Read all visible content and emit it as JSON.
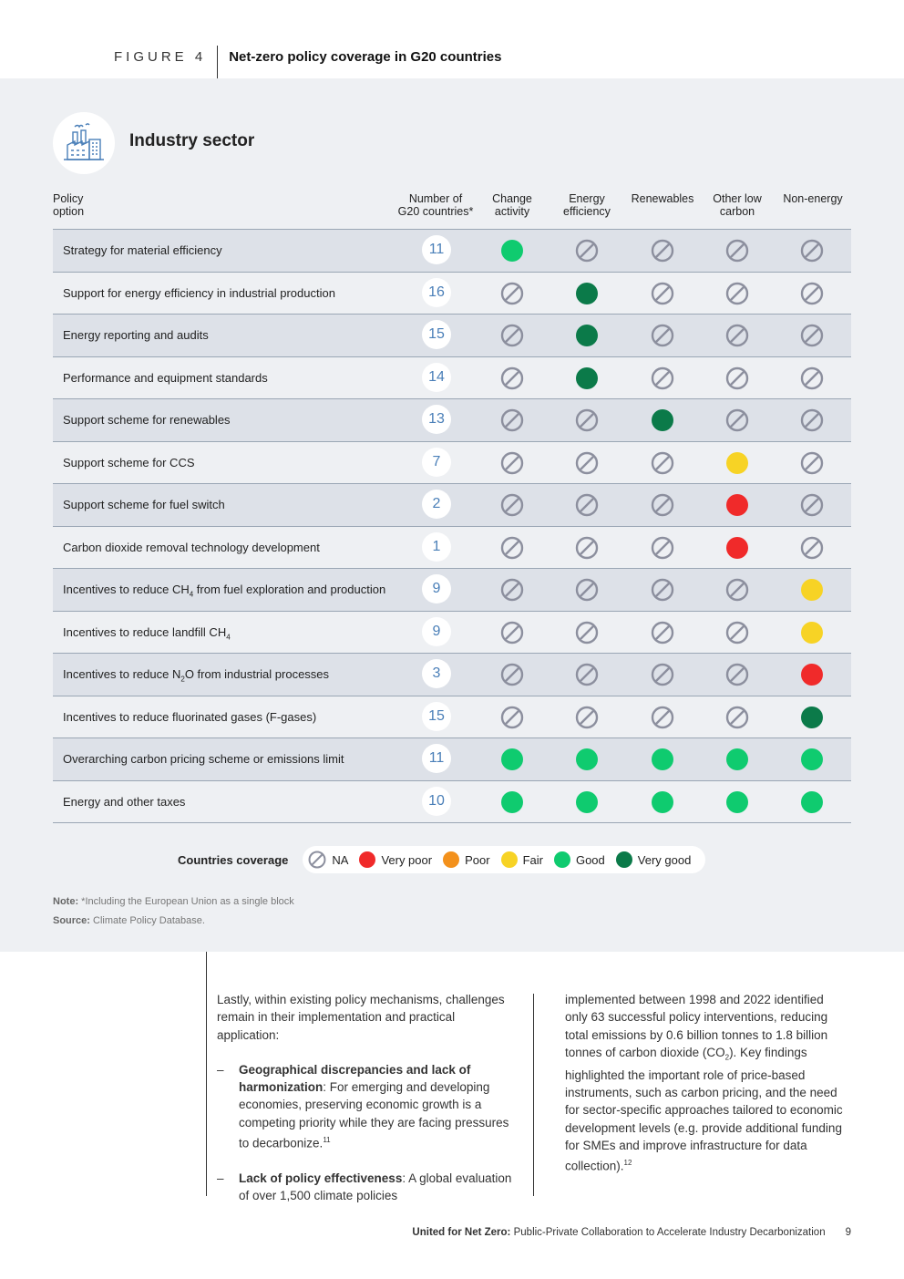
{
  "figure": {
    "label": "FIGURE 4",
    "title": "Net-zero policy coverage in G20 countries"
  },
  "sector": {
    "title": "Industry sector",
    "icon": "factory-icon"
  },
  "columns": {
    "policy": "Policy\noption",
    "count": "Number of\nG20 countries*",
    "change": "Change\nactivity",
    "efficiency": "Energy\nefficiency",
    "renewables": "Renewables",
    "other": "Other low\ncarbon",
    "nonenergy": "Non-energy"
  },
  "colors": {
    "NA": "#8c8f9e",
    "Very poor": "#f02a2a",
    "Poor": "#f3911c",
    "Fair": "#f7d325",
    "Good": "#0fcb6f",
    "Very good": "#0b7a49"
  },
  "rows": [
    {
      "label": "Strategy for material efficiency",
      "count": "11",
      "ratings": [
        "Good",
        "NA",
        "NA",
        "NA",
        "NA"
      ]
    },
    {
      "label": "Support for energy efficiency in industrial production",
      "count": "16",
      "ratings": [
        "NA",
        "Very good",
        "NA",
        "NA",
        "NA"
      ]
    },
    {
      "label": "Energy reporting and audits",
      "count": "15",
      "ratings": [
        "NA",
        "Very good",
        "NA",
        "NA",
        "NA"
      ]
    },
    {
      "label": "Performance and equipment standards",
      "count": "14",
      "ratings": [
        "NA",
        "Very good",
        "NA",
        "NA",
        "NA"
      ]
    },
    {
      "label": "Support scheme for renewables",
      "count": "13",
      "ratings": [
        "NA",
        "NA",
        "Very good",
        "NA",
        "NA"
      ]
    },
    {
      "label": "Support scheme for CCS",
      "count": "7",
      "ratings": [
        "NA",
        "NA",
        "NA",
        "Fair",
        "NA"
      ]
    },
    {
      "label": "Support scheme for fuel switch",
      "count": "2",
      "ratings": [
        "NA",
        "NA",
        "NA",
        "Very poor",
        "NA"
      ]
    },
    {
      "label": "Carbon dioxide removal technology development",
      "count": "1",
      "ratings": [
        "NA",
        "NA",
        "NA",
        "Very poor",
        "NA"
      ]
    },
    {
      "label": "Incentives to reduce CH4 from fuel exploration and production",
      "count": "9",
      "ratings": [
        "NA",
        "NA",
        "NA",
        "NA",
        "Fair"
      ]
    },
    {
      "label": "Incentives to reduce landfill CH4",
      "count": "9",
      "ratings": [
        "NA",
        "NA",
        "NA",
        "NA",
        "Fair"
      ]
    },
    {
      "label": "Incentives to reduce N2O from industrial processes",
      "count": "3",
      "ratings": [
        "NA",
        "NA",
        "NA",
        "NA",
        "Very poor"
      ]
    },
    {
      "label": "Incentives to reduce fluorinated gases (F-gases)",
      "count": "15",
      "ratings": [
        "NA",
        "NA",
        "NA",
        "NA",
        "Very good"
      ]
    },
    {
      "label": "Overarching carbon pricing scheme or emissions limit",
      "count": "11",
      "ratings": [
        "Good",
        "Good",
        "Good",
        "Good",
        "Good"
      ]
    },
    {
      "label": "Energy and other taxes",
      "count": "10",
      "ratings": [
        "Good",
        "Good",
        "Good",
        "Good",
        "Good"
      ]
    }
  ],
  "legend": {
    "title": "Countries coverage",
    "items": [
      "NA",
      "Very poor",
      "Poor",
      "Fair",
      "Good",
      "Very good"
    ]
  },
  "note": {
    "label": "Note:",
    "text": " *Including the European Union as a single block"
  },
  "source": {
    "label": "Source:",
    "text": " Climate Policy Database."
  },
  "body": {
    "intro": "Lastly, within existing policy mechanisms, challenges remain in their implementation and practical application:",
    "b1_bold": "Geographical discrepancies and lack of harmonization",
    "b1_text": ": For emerging and developing economies, preserving economic growth is a competing priority while they are facing pressures to decarbonize.",
    "b1_ref": "11",
    "b2_bold": "Lack of policy effectiveness",
    "b2_text": ": A global evaluation of over 1,500 climate policies",
    "right_a": "implemented between 1998 and 2022 identified only 63 successful policy interventions, reducing total emissions by 0.6 billion tonnes to 1.8 billion tonnes of carbon dioxide (CO",
    "right_sub": "2",
    "right_b": "). Key findings highlighted the important role of price-based instruments, such as carbon pricing, and the need for sector-specific approaches tailored to economic development levels (e.g. provide additional funding for SMEs and improve infrastructure for data collection).",
    "right_ref": "12"
  },
  "footer": {
    "bold": "United for Net Zero:",
    "text": " Public-Private Collaboration to Accelerate Industry Decarbonization",
    "page": "9"
  }
}
